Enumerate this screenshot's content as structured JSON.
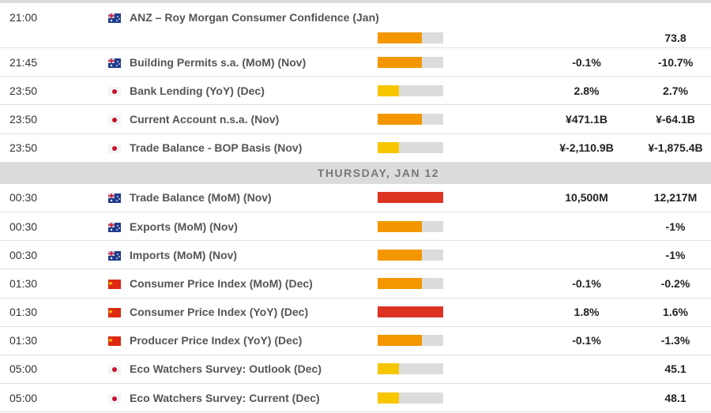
{
  "colors": {
    "low": "#f7c600",
    "medium": "#f39600",
    "high": "#dd3322",
    "flag_au_bg": "#1f3c8c",
    "flag_jp_dot": "#c8102e",
    "flag_cn_bg": "#de2910"
  },
  "rows_before": [
    {
      "time": "21:00",
      "flag": "australia-flag-icon",
      "event": "ANZ – Roy Morgan Consumer Confidence (Jan)",
      "impact": "medium",
      "impact_level": 0.67,
      "actual": "",
      "previous": "73.8"
    },
    {
      "time": "21:45",
      "flag": "australia-flag-icon",
      "event": "Building Permits s.a. (MoM) (Nov)",
      "impact": "medium",
      "impact_level": 0.67,
      "actual": "-0.1%",
      "previous": "-10.7%"
    },
    {
      "time": "23:50",
      "flag": "japan-flag-icon",
      "event": "Bank Lending (YoY) (Dec)",
      "impact": "low",
      "impact_level": 0.33,
      "actual": "2.8%",
      "previous": "2.7%"
    },
    {
      "time": "23:50",
      "flag": "japan-flag-icon",
      "event": "Current Account n.s.a. (Nov)",
      "impact": "medium",
      "impact_level": 0.67,
      "actual": "¥471.1B",
      "previous": "¥-64.1B"
    },
    {
      "time": "23:50",
      "flag": "japan-flag-icon",
      "event": "Trade Balance - BOP Basis (Nov)",
      "impact": "low",
      "impact_level": 0.33,
      "actual": "¥-2,110.9B",
      "previous": "¥-1,875.4B"
    }
  ],
  "day_header": "THURSDAY, JAN 12",
  "rows_after": [
    {
      "time": "00:30",
      "flag": "australia-flag-icon",
      "event": "Trade Balance (MoM) (Nov)",
      "impact": "high",
      "impact_level": 1,
      "actual": "10,500M",
      "previous": "12,217M"
    },
    {
      "time": "00:30",
      "flag": "australia-flag-icon",
      "event": "Exports (MoM) (Nov)",
      "impact": "medium",
      "impact_level": 0.67,
      "actual": "",
      "previous": "-1%"
    },
    {
      "time": "00:30",
      "flag": "australia-flag-icon",
      "event": "Imports (MoM) (Nov)",
      "impact": "medium",
      "impact_level": 0.67,
      "actual": "",
      "previous": "-1%"
    },
    {
      "time": "01:30",
      "flag": "china-flag-icon",
      "event": "Consumer Price Index (MoM) (Dec)",
      "impact": "medium",
      "impact_level": 0.67,
      "actual": "-0.1%",
      "previous": "-0.2%"
    },
    {
      "time": "01:30",
      "flag": "china-flag-icon",
      "event": "Consumer Price Index (YoY) (Dec)",
      "impact": "high",
      "impact_level": 1,
      "actual": "1.8%",
      "previous": "1.6%"
    },
    {
      "time": "01:30",
      "flag": "china-flag-icon",
      "event": "Producer Price Index (YoY) (Dec)",
      "impact": "medium",
      "impact_level": 0.67,
      "actual": "-0.1%",
      "previous": "-1.3%"
    },
    {
      "time": "05:00",
      "flag": "japan-flag-icon",
      "event": "Eco Watchers Survey: Outlook (Dec)",
      "impact": "low",
      "impact_level": 0.33,
      "actual": "",
      "previous": "45.1"
    },
    {
      "time": "05:00",
      "flag": "japan-flag-icon",
      "event": "Eco Watchers Survey: Current (Dec)",
      "impact": "low",
      "impact_level": 0.33,
      "actual": "",
      "previous": "48.1"
    }
  ]
}
